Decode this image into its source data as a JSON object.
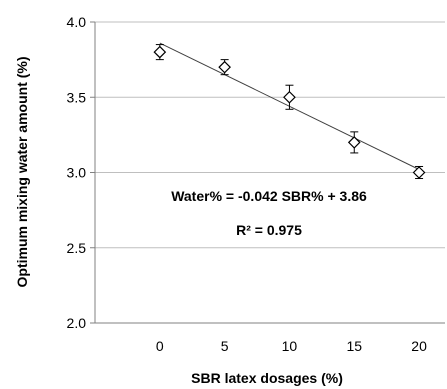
{
  "chart_data": {
    "type": "scatter",
    "title": "",
    "xlabel": "SBR latex dosages (%)",
    "ylabel": "Optimum mixing water amount (%)",
    "xlim": [
      -5,
      22
    ],
    "ylim": [
      2.0,
      4.0
    ],
    "x_ticks": [
      "0",
      "5",
      "10",
      "15",
      "20"
    ],
    "y_ticks": [
      "2.0",
      "2.5",
      "3.0",
      "3.5",
      "4.0"
    ],
    "grid": true,
    "legend": "none",
    "series": [
      {
        "marker": "diamond-open",
        "x": [
          0,
          5,
          10,
          15,
          20
        ],
        "y": [
          3.8,
          3.7,
          3.5,
          3.2,
          3.0
        ],
        "error": [
          0.05,
          0.05,
          0.08,
          0.07,
          0.04
        ]
      }
    ],
    "trendline": {
      "type": "linear",
      "slope": -0.042,
      "intercept": 3.86,
      "x_range": [
        0,
        20
      ]
    },
    "annotations": [
      "Water% = -0.042 SBR% + 3.86",
      "R² = 0.975"
    ],
    "colors": {
      "marker": "#000000",
      "line": "#404040",
      "grid": "#bfbfbf",
      "axis": "#808080"
    }
  }
}
